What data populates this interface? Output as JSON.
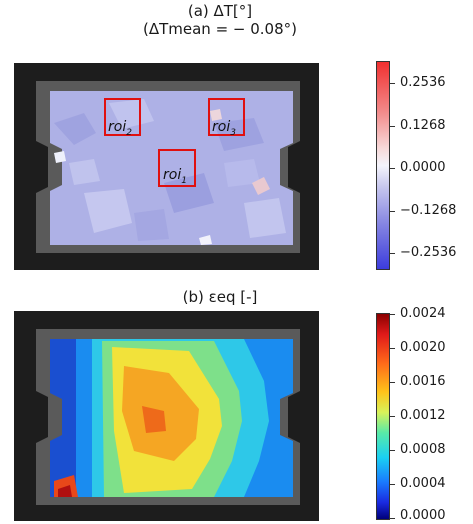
{
  "figure": {
    "panel_a": {
      "title_line1": "(a) ΔT[°]",
      "title_line2": "(ΔTmean = − 0.08°)",
      "rois": [
        {
          "label": "roi",
          "sub": "1"
        },
        {
          "label": "roi",
          "sub": "2"
        },
        {
          "label": "roi",
          "sub": "3"
        }
      ],
      "colorbar_ticks": [
        "0.2536",
        "0.1268",
        "0.0000",
        "−0.1268",
        "−0.2536"
      ],
      "colors": {
        "high": "#f03030",
        "mid": "#f4f4fb",
        "low": "#3c3cdc",
        "field": "#aeb1e6"
      }
    },
    "panel_b": {
      "title": "(b) εeq [-]",
      "colorbar_ticks": [
        "0.0024",
        "0.0020",
        "0.0016",
        "0.0012",
        "0.0008",
        "0.0004",
        "0.0000"
      ],
      "colors": {
        "high": "#8b0000",
        "mid": "#ffc31a",
        "low": "#00007a"
      }
    }
  }
}
